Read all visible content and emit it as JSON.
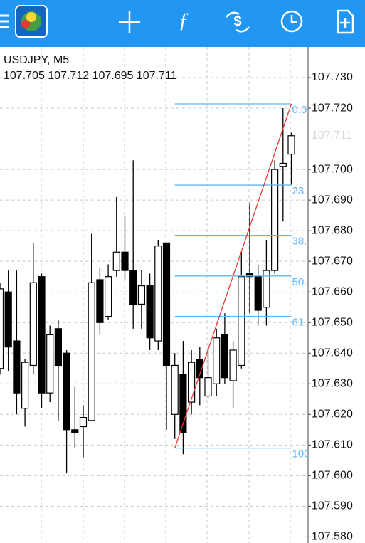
{
  "header": {
    "symbol": "USDJPY, M5",
    "ohlc_text": "107.705 107.712 107.695 107.711"
  },
  "chart_data": {
    "type": "candlestick",
    "open": [
      107.635,
      107.66,
      107.644,
      107.622,
      107.636,
      107.665,
      107.627,
      107.648,
      107.64,
      107.615,
      107.616,
      107.618,
      107.664,
      107.652,
      107.667,
      107.673,
      107.667,
      107.656,
      107.662,
      107.644,
      107.676,
      107.62,
      107.633,
      107.624,
      107.638,
      107.626,
      107.63,
      107.646,
      107.631,
      107.636,
      107.666,
      107.665,
      107.655,
      107.667,
      107.701,
      107.705
    ],
    "high": [
      107.663,
      107.667,
      107.667,
      107.638,
      107.676,
      107.666,
      107.649,
      107.651,
      107.641,
      107.629,
      107.623,
      107.679,
      107.668,
      107.669,
      107.691,
      107.685,
      107.703,
      107.667,
      107.666,
      107.677,
      107.676,
      107.64,
      107.644,
      107.641,
      107.642,
      107.642,
      107.648,
      107.653,
      107.644,
      107.673,
      107.689,
      107.669,
      107.677,
      107.703,
      107.72,
      107.712
    ],
    "low": [
      107.633,
      107.634,
      107.62,
      107.616,
      107.633,
      107.622,
      107.624,
      107.618,
      107.601,
      107.609,
      107.606,
      107.618,
      107.646,
      107.651,
      107.665,
      107.664,
      107.648,
      107.648,
      107.641,
      107.641,
      107.615,
      107.612,
      107.607,
      107.62,
      107.623,
      107.625,
      107.626,
      107.63,
      107.622,
      107.635,
      107.653,
      107.649,
      107.649,
      107.666,
      107.683,
      107.695
    ],
    "close": [
      107.661,
      107.642,
      107.627,
      107.637,
      107.663,
      107.627,
      107.646,
      107.636,
      107.615,
      107.614,
      107.619,
      107.663,
      107.65,
      107.665,
      107.673,
      107.667,
      107.656,
      107.662,
      107.645,
      107.675,
      107.636,
      107.636,
      107.614,
      107.637,
      107.632,
      107.632,
      107.645,
      107.632,
      107.641,
      107.665,
      107.665,
      107.654,
      107.667,
      107.7,
      107.702,
      107.711
    ],
    "up_color": "#ffffff",
    "down_color": "#000000",
    "ylim": [
      107.578,
      107.74
    ],
    "yticks": [
      {
        "value": 107.73,
        "label": "107.730"
      },
      {
        "value": 107.72,
        "label": "107.720"
      },
      {
        "value": 107.7,
        "label": "107.700"
      },
      {
        "value": 107.69,
        "label": "107.690"
      },
      {
        "value": 107.68,
        "label": "107.680"
      },
      {
        "value": 107.67,
        "label": "107.670"
      },
      {
        "value": 107.66,
        "label": "107.660"
      },
      {
        "value": 107.65,
        "label": "107.650"
      },
      {
        "value": 107.64,
        "label": "107.640"
      },
      {
        "value": 107.63,
        "label": "107.630"
      },
      {
        "value": 107.62,
        "label": "107.620"
      },
      {
        "value": 107.61,
        "label": "107.610"
      },
      {
        "value": 107.6,
        "label": "107.600"
      },
      {
        "value": 107.59,
        "label": "107.590"
      },
      {
        "value": 107.58,
        "label": "107.580"
      }
    ],
    "price_label": {
      "value": 107.711,
      "label": "107.711"
    },
    "grid": true,
    "fibonacci": {
      "color": "#64b5f6",
      "trend_color": "#e53935",
      "levels": [
        {
          "value": 107.7214,
          "label": "0.0"
        },
        {
          "value": 107.6949,
          "label": "23."
        },
        {
          "value": 107.6785,
          "label": "38."
        },
        {
          "value": 107.6652,
          "label": "50."
        },
        {
          "value": 107.652,
          "label": "61."
        },
        {
          "value": 107.609,
          "label": "100"
        }
      ]
    }
  }
}
